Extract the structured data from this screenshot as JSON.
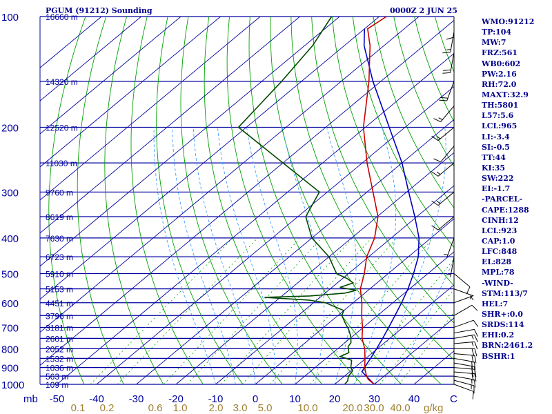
{
  "title": {
    "left": "PGUM (91212) Sounding",
    "right": "0000Z  2 JUN 25"
  },
  "colors": {
    "isobar": "#0000a0",
    "dry_adiabat": "#00a000",
    "moist_adiabat": "#40a0ff",
    "mixing_ratio": "#00a000",
    "temperature": "#cc0000",
    "dewpoint": "#004800",
    "parcel": "#0000c0",
    "wind": "#000000",
    "text": "#00008b"
  },
  "chart_data": {
    "type": "line",
    "pressure_levels": [
      100,
      200,
      300,
      400,
      500,
      600,
      700,
      800,
      900,
      1000
    ],
    "pressure_labels": [
      "100",
      "200",
      "300",
      "400",
      "500",
      "600",
      "700",
      "800",
      "900",
      "1000"
    ],
    "pressure_unit": "mb",
    "height_labels": [
      {
        "p": 100,
        "label": "16660 m"
      },
      {
        "p": 150,
        "label": "14320 m"
      },
      {
        "p": 200,
        "label": "12520 m"
      },
      {
        "p": 250,
        "label": "11030 m"
      },
      {
        "p": 300,
        "label": "9760 m"
      },
      {
        "p": 350,
        "label": "8619 m"
      },
      {
        "p": 400,
        "label": "7630 m"
      },
      {
        "p": 450,
        "label": "6723 m"
      },
      {
        "p": 500,
        "label": "5910 m"
      },
      {
        "p": 550,
        "label": "5153 m"
      },
      {
        "p": 600,
        "label": "4451 m"
      },
      {
        "p": 650,
        "label": "3796 m"
      },
      {
        "p": 700,
        "label": "3181 m"
      },
      {
        "p": 750,
        "label": "2601 m"
      },
      {
        "p": 800,
        "label": "2052 m"
      },
      {
        "p": 850,
        "label": "1532 m"
      },
      {
        "p": 900,
        "label": "1036 m"
      },
      {
        "p": 950,
        "label": "563 m"
      },
      {
        "p": 1000,
        "label": "109 m"
      }
    ],
    "temp_ticks": [
      -50,
      -40,
      -30,
      -20,
      -10,
      0,
      10,
      20,
      30,
      40
    ],
    "temp_tick_labels": [
      "-50",
      "-40",
      "-30",
      "-20",
      "-10",
      "0",
      "10",
      "20",
      "30",
      "40"
    ],
    "temp_unit": "C",
    "mixing_ratio_labels": [
      "0.1",
      "0.2",
      "0.6",
      "1.0",
      "2.0",
      "3.0",
      "5.0",
      "10.0",
      "20.0",
      "30.0",
      "40.0"
    ],
    "mixing_ratio_unit": "g/kg",
    "temperature": [
      [
        1000,
        30.0
      ],
      [
        970,
        27.0
      ],
      [
        950,
        25.6
      ],
      [
        925,
        24.0
      ],
      [
        900,
        22.5
      ],
      [
        850,
        19.8
      ],
      [
        800,
        16.8
      ],
      [
        750,
        13.0
      ],
      [
        700,
        9.8
      ],
      [
        650,
        6.0
      ],
      [
        600,
        2.2
      ],
      [
        550,
        -2.4
      ],
      [
        500,
        -6.0
      ],
      [
        450,
        -10.5
      ],
      [
        400,
        -14.2
      ],
      [
        350,
        -19.8
      ],
      [
        300,
        -28.5
      ],
      [
        250,
        -38.8
      ],
      [
        200,
        -50.5
      ],
      [
        150,
        -63.0
      ],
      [
        120,
        -73.5
      ],
      [
        108,
        -79.2
      ],
      [
        100,
        -78.2
      ]
    ],
    "dewpoint": [
      [
        1000,
        22.5
      ],
      [
        980,
        22.3
      ],
      [
        950,
        21.0
      ],
      [
        920,
        20.5
      ],
      [
        900,
        19.0
      ],
      [
        860,
        17.0
      ],
      [
        840,
        13.0
      ],
      [
        820,
        14.0
      ],
      [
        790,
        12.0
      ],
      [
        770,
        11.5
      ],
      [
        740,
        9.5
      ],
      [
        710,
        7.0
      ],
      [
        680,
        4.0
      ],
      [
        650,
        1.0
      ],
      [
        630,
        0.0
      ],
      [
        600,
        -7.0
      ],
      [
        590,
        -12.0
      ],
      [
        580,
        -24.0
      ],
      [
        575,
        -13.0
      ],
      [
        565,
        -5.0
      ],
      [
        555,
        -3.0
      ],
      [
        545,
        -8.0
      ],
      [
        530,
        -6.0
      ],
      [
        515,
        -9.0
      ],
      [
        500,
        -13.0
      ],
      [
        450,
        -20.0
      ],
      [
        400,
        -30.0
      ],
      [
        350,
        -38.0
      ],
      [
        300,
        -42.0
      ],
      [
        250,
        -60.0
      ],
      [
        200,
        -82.0
      ],
      [
        150,
        -85.0
      ],
      [
        120,
        -88.0
      ],
      [
        100,
        -92.0
      ]
    ],
    "parcel": [
      [
        1000,
        30.0
      ],
      [
        923,
        23.0
      ],
      [
        850,
        21.2
      ],
      [
        800,
        19.8
      ],
      [
        750,
        18.2
      ],
      [
        700,
        16.4
      ],
      [
        650,
        14.4
      ],
      [
        600,
        12.2
      ],
      [
        550,
        9.6
      ],
      [
        500,
        6.4
      ],
      [
        450,
        2.5
      ],
      [
        400,
        -3.0
      ],
      [
        350,
        -10.5
      ],
      [
        300,
        -19.5
      ],
      [
        250,
        -30.0
      ],
      [
        200,
        -44.0
      ],
      [
        150,
        -62.0
      ],
      [
        120,
        -75.0
      ],
      [
        108,
        -80.0
      ]
    ],
    "wind_barbs": [
      {
        "p": 1000,
        "dir": 110,
        "spd": 10
      },
      {
        "p": 975,
        "dir": 105,
        "spd": 15
      },
      {
        "p": 950,
        "dir": 100,
        "spd": 15
      },
      {
        "p": 925,
        "dir": 95,
        "spd": 20
      },
      {
        "p": 900,
        "dir": 95,
        "spd": 20
      },
      {
        "p": 875,
        "dir": 100,
        "spd": 20
      },
      {
        "p": 850,
        "dir": 100,
        "spd": 20
      },
      {
        "p": 825,
        "dir": 95,
        "spd": 20
      },
      {
        "p": 800,
        "dir": 90,
        "spd": 20
      },
      {
        "p": 775,
        "dir": 85,
        "spd": 15
      },
      {
        "p": 750,
        "dir": 80,
        "spd": 15
      },
      {
        "p": 725,
        "dir": 80,
        "spd": 10
      },
      {
        "p": 700,
        "dir": 70,
        "spd": 10
      },
      {
        "p": 650,
        "dir": 60,
        "spd": 10
      },
      {
        "p": 600,
        "dir": 70,
        "spd": 5
      },
      {
        "p": 550,
        "dir": 110,
        "spd": 5
      },
      {
        "p": 500,
        "dir": 130,
        "spd": 10
      },
      {
        "p": 450,
        "dir": 190,
        "spd": 5
      },
      {
        "p": 400,
        "dir": 200,
        "spd": 5
      },
      {
        "p": 350,
        "dir": 230,
        "spd": 10
      },
      {
        "p": 300,
        "dir": 230,
        "spd": 15
      },
      {
        "p": 250,
        "dir": 230,
        "spd": 15
      },
      {
        "p": 225,
        "dir": 220,
        "spd": 10
      },
      {
        "p": 200,
        "dir": 230,
        "spd": 15
      },
      {
        "p": 175,
        "dir": 220,
        "spd": 15
      },
      {
        "p": 150,
        "dir": 200,
        "spd": 20
      },
      {
        "p": 125,
        "dir": 190,
        "spd": 20
      },
      {
        "p": 110,
        "dir": 190,
        "spd": 15
      },
      {
        "p": 100,
        "dir": 180,
        "spd": 10
      }
    ]
  },
  "indices": [
    "WMO:91212",
    "TP:104",
    "MW:7",
    "FRZ:561",
    "WB0:602",
    "PW:2.16",
    "RH:72.0",
    "MAXT:32.9",
    "TH:5801",
    "L57:5.6",
    "LCL:965",
    "LI:-3.4",
    "SI:-0.5",
    "TT:44",
    "KI:35",
    "SW:222",
    "EI:-1.7",
    "-PARCEL-",
    "CAPE:1288",
    "CINH:12",
    "LCL:923",
    "CAP:1.0",
    "LFC:848",
    "EL:828",
    "MPL:78",
    "-WIND-",
    "STM:113/7",
    "HEL:7",
    "SHR+:0.0",
    "SRDS:114",
    "EHI:0.2",
    "BRN:2461.2",
    "BSHR:1"
  ]
}
